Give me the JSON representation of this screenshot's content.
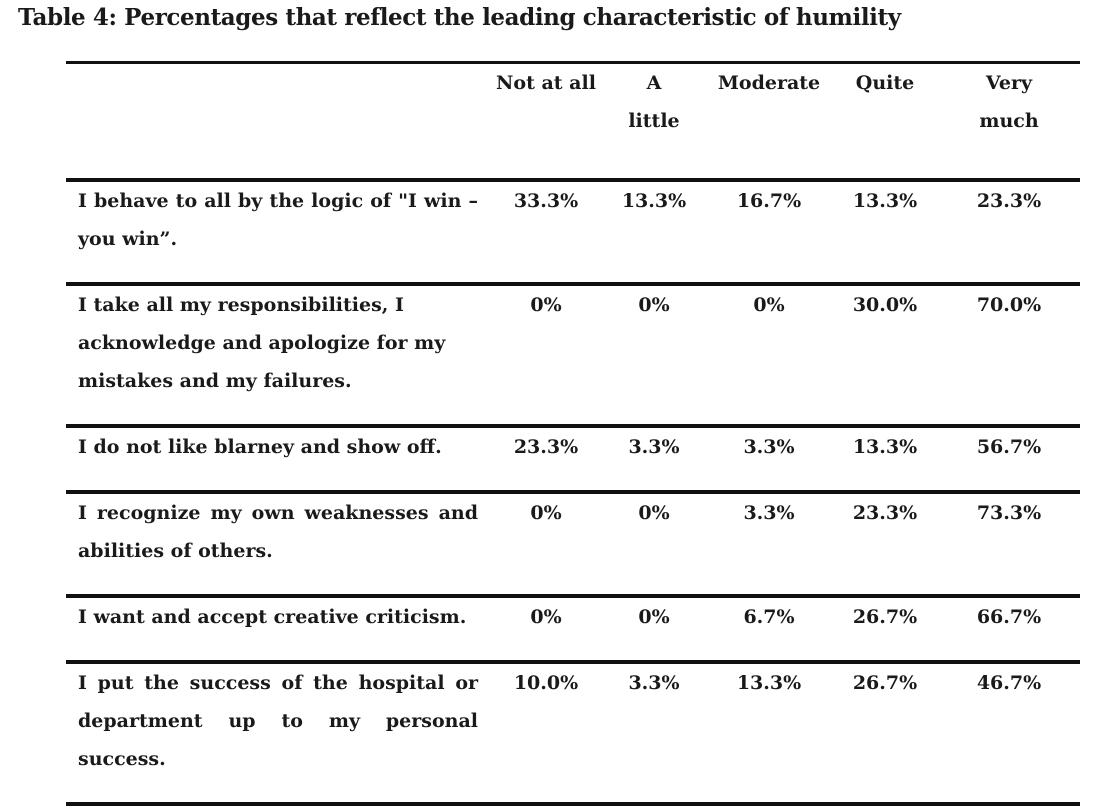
{
  "caption": "Table 4: Percentages that reflect the leading characteristic of humility",
  "columns": [
    "",
    "Not at all",
    "A little",
    "Moderate",
    "Quite",
    "Very much"
  ],
  "rows": [
    {
      "label": "I behave to all by the logic of \"I win – you win”.",
      "values": [
        "33.3%",
        "13.3%",
        "16.7%",
        "13.3%",
        "23.3%"
      ]
    },
    {
      "label": "I take all my responsibilities, I acknowledge and apologize for my mistakes and my failures.",
      "values": [
        "0%",
        "0%",
        "0%",
        "30.0%",
        "70.0%"
      ]
    },
    {
      "label": "I do not like blarney and show off.",
      "values": [
        "23.3%",
        "3.3%",
        "3.3%",
        "13.3%",
        "56.7%"
      ]
    },
    {
      "label": "I recognize my own weaknesses and abilities of others.",
      "values": [
        "0%",
        "0%",
        "3.3%",
        "23.3%",
        "73.3%"
      ]
    },
    {
      "label": "I want and accept creative criticism.",
      "values": [
        "0%",
        "0%",
        "6.7%",
        "26.7%",
        "66.7%"
      ]
    },
    {
      "label": "I put the success of the hospital or department up to my personal success.",
      "values": [
        "10.0%",
        "3.3%",
        "13.3%",
        "26.7%",
        "46.7%"
      ]
    }
  ]
}
